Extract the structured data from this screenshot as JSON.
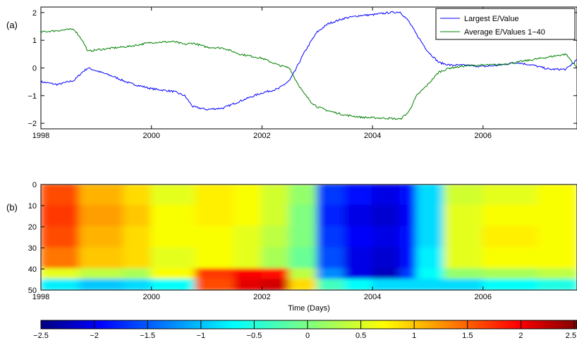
{
  "panels": {
    "a": {
      "label": "(a)"
    },
    "b": {
      "label": "(b)"
    }
  },
  "chart_data": [
    {
      "type": "line",
      "panel": "(a)",
      "xlim": [
        1998,
        2007.7
      ],
      "ylim": [
        -2.2,
        2.2
      ],
      "xticks": [
        1998,
        2000,
        2002,
        2004,
        2006
      ],
      "xtick_labels": [
        "1998",
        "2000",
        "2002",
        "2004",
        "2006"
      ],
      "yticks": [
        2,
        1,
        0,
        -1,
        -2
      ],
      "ytick_labels": [
        "2",
        "1",
        "0",
        "−1",
        "−2"
      ],
      "grid": false,
      "legend_position": "top-right",
      "series": [
        {
          "name": "Largest E/Value",
          "color": "#0000ff",
          "x": [
            1998.0,
            1998.3,
            1998.6,
            1998.75,
            1998.85,
            1999.0,
            1999.3,
            1999.6,
            2000.0,
            2000.4,
            2000.6,
            2000.75,
            2001.0,
            2001.3,
            2001.6,
            2002.0,
            2002.3,
            2002.5,
            2002.6,
            2002.75,
            2002.9,
            2003.0,
            2003.2,
            2003.5,
            2003.8,
            2004.0,
            2004.3,
            2004.5,
            2004.65,
            2004.8,
            2005.0,
            2005.2,
            2005.4,
            2005.7,
            2006.0,
            2006.3,
            2006.6,
            2006.9,
            2007.2,
            2007.5,
            2007.7
          ],
          "values": [
            -0.5,
            -0.6,
            -0.45,
            -0.15,
            0.0,
            -0.1,
            -0.3,
            -0.55,
            -0.75,
            -0.85,
            -1.0,
            -1.4,
            -1.5,
            -1.45,
            -1.2,
            -0.9,
            -0.75,
            -0.45,
            -0.1,
            0.5,
            1.0,
            1.3,
            1.6,
            1.8,
            1.9,
            1.92,
            2.0,
            2.02,
            1.7,
            1.2,
            0.6,
            0.2,
            0.1,
            0.1,
            0.05,
            0.1,
            0.2,
            0.1,
            -0.05,
            -0.05,
            0.3
          ]
        },
        {
          "name": "Average E/Values 1−40",
          "color": "#008000",
          "x": [
            1998.0,
            1998.3,
            1998.6,
            1998.75,
            1998.85,
            1999.0,
            1999.3,
            1999.6,
            2000.0,
            2000.4,
            2000.6,
            2000.75,
            2001.0,
            2001.3,
            2001.6,
            2002.0,
            2002.3,
            2002.5,
            2002.6,
            2002.75,
            2002.9,
            2003.0,
            2003.2,
            2003.5,
            2003.8,
            2004.0,
            2004.3,
            2004.5,
            2004.65,
            2004.8,
            2005.0,
            2005.2,
            2005.4,
            2005.7,
            2006.0,
            2006.3,
            2006.6,
            2006.9,
            2007.2,
            2007.5,
            2007.7
          ],
          "values": [
            1.3,
            1.35,
            1.4,
            1.0,
            0.6,
            0.65,
            0.72,
            0.78,
            0.92,
            0.95,
            0.85,
            0.9,
            0.75,
            0.72,
            0.5,
            0.35,
            0.1,
            0.0,
            -0.4,
            -0.9,
            -1.25,
            -1.4,
            -1.55,
            -1.7,
            -1.78,
            -1.8,
            -1.82,
            -1.85,
            -1.6,
            -1.0,
            -0.6,
            -0.15,
            0.0,
            0.08,
            0.1,
            0.12,
            0.2,
            0.3,
            0.4,
            0.5,
            0.0
          ]
        }
      ]
    },
    {
      "type": "heatmap",
      "panel": "(b)",
      "xlabel": "Time (Days)",
      "xlim": [
        1998,
        2007.7
      ],
      "ylim": [
        0,
        50
      ],
      "y_reversed": true,
      "xticks": [
        1998,
        2000,
        2002,
        2004,
        2006
      ],
      "xtick_labels": [
        "1998",
        "2000",
        "2002",
        "2004",
        "2006"
      ],
      "yticks": [
        0,
        10,
        20,
        30,
        40,
        50
      ],
      "ytick_labels": [
        "0",
        "10",
        "20",
        "30",
        "40",
        "50"
      ],
      "colormap": "jet",
      "clim": [
        -2.5,
        2.5
      ],
      "colorbar_ticks": [
        -2.5,
        -2,
        -1.5,
        -1,
        -0.5,
        0,
        0.5,
        1,
        1.5,
        2,
        2.5
      ],
      "colorbar_labels": [
        "−2.5",
        "−2",
        "−1.5",
        "−1",
        "−0.5",
        "0",
        "0.5",
        "1",
        "1.5",
        "2",
        "2.5"
      ],
      "row_bands": [
        0,
        10,
        20,
        30,
        40,
        45,
        50
      ],
      "time_bins": [
        1998.0,
        1998.7,
        1999.5,
        2000.0,
        2000.8,
        2001.5,
        2002.0,
        2002.5,
        2003.0,
        2003.5,
        2004.0,
        2004.5,
        2004.8,
        2005.3,
        2006.0,
        2007.0,
        2007.7
      ],
      "values": [
        [
          1.5,
          1.0,
          0.8,
          0.5,
          0.7,
          0.6,
          0.4,
          0.1,
          -1.6,
          -1.8,
          -2.0,
          -1.8,
          -0.8,
          0.4,
          0.5,
          0.6
        ],
        [
          1.6,
          1.1,
          0.9,
          0.6,
          0.7,
          0.6,
          0.4,
          0.0,
          -1.7,
          -2.0,
          -2.1,
          -1.9,
          -0.8,
          0.5,
          0.6,
          0.6
        ],
        [
          1.5,
          1.0,
          0.8,
          0.6,
          0.6,
          0.5,
          0.3,
          0.0,
          -1.6,
          -1.9,
          -2.0,
          -1.8,
          -0.8,
          0.5,
          0.7,
          0.6
        ],
        [
          1.3,
          0.9,
          0.8,
          0.5,
          0.6,
          0.5,
          0.2,
          -0.1,
          -1.5,
          -2.0,
          -2.1,
          -1.8,
          -0.7,
          0.5,
          0.6,
          0.6
        ],
        [
          0.5,
          0.3,
          0.2,
          0.6,
          1.6,
          1.9,
          1.8,
          0.3,
          -1.2,
          -2.0,
          -2.2,
          -1.6,
          -0.6,
          0.1,
          0.2,
          0.3
        ],
        [
          -0.7,
          -0.9,
          -0.8,
          -0.6,
          1.5,
          2.0,
          2.1,
          0.8,
          -0.3,
          -0.6,
          -0.8,
          -0.8,
          -0.8,
          -0.8,
          -0.6,
          -0.5
        ]
      ]
    }
  ]
}
